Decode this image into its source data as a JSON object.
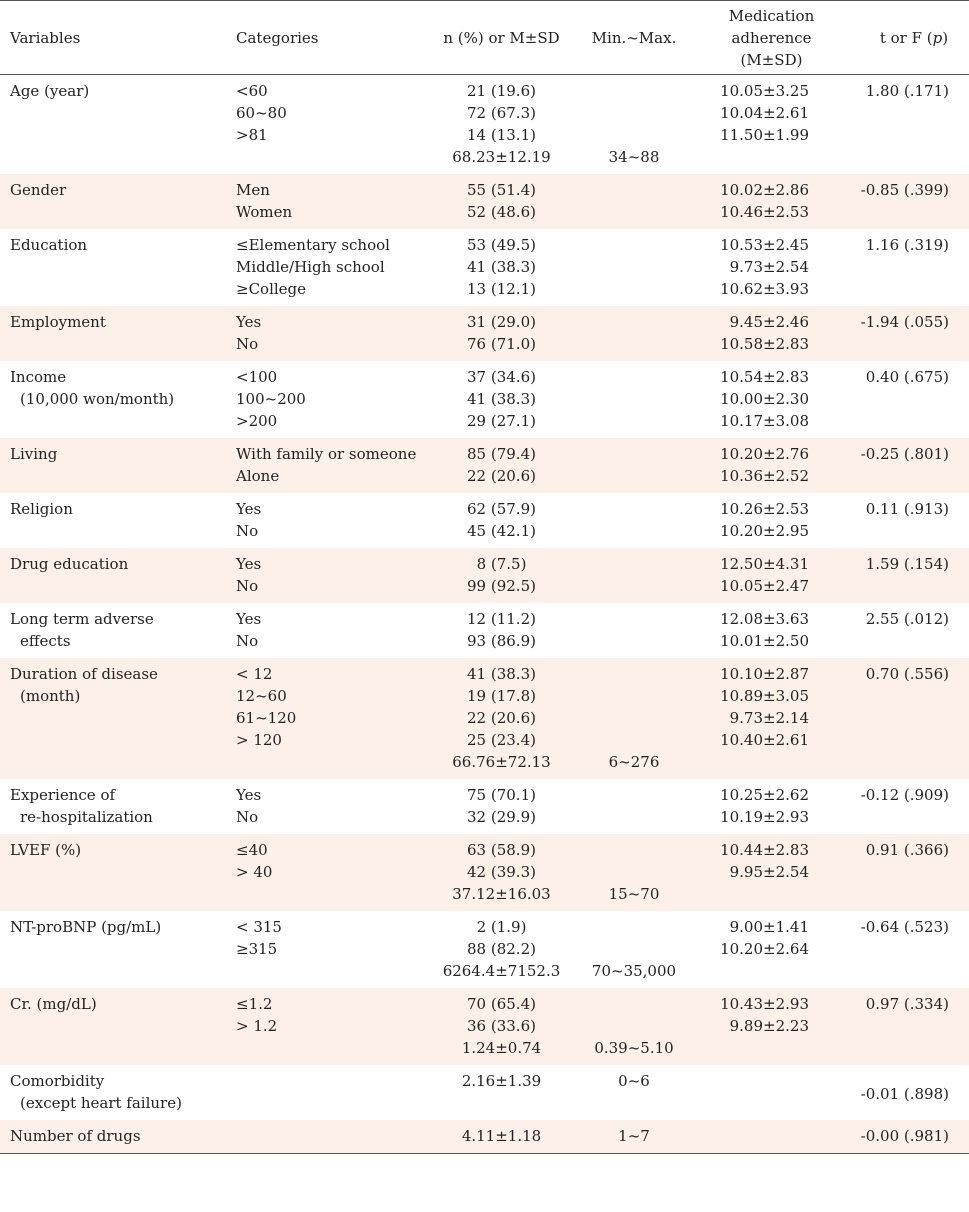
{
  "headers": {
    "variables": "Variables",
    "categories": "Categories",
    "n": "n (%) or M±SD",
    "minmax": "Min.~Max.",
    "adherence_line1": "Medication",
    "adherence_line2": "adherence",
    "adherence_line3": "(M±SD)",
    "test_prefix": "t or F (",
    "test_p": "p",
    "test_suffix": ")"
  },
  "rows": [
    {
      "var1": "Age (year)",
      "cats": [
        "<60",
        "60~80",
        ">81"
      ],
      "n": [
        "21 (19.6)",
        "72 (67.3)",
        "14 (13.1)",
        "68.23±12.19"
      ],
      "minmax": "34~88",
      "adh": [
        "10.05±3.25",
        "10.04±2.61",
        "11.50±1.99"
      ],
      "test": "1.80 (.171)"
    },
    {
      "var1": "Gender",
      "cats": [
        "Men",
        "Women"
      ],
      "n": [
        "55 (51.4)",
        "52 (48.6)"
      ],
      "adh": [
        "10.02±2.86",
        "10.46±2.53"
      ],
      "test": "-0.85 (.399)"
    },
    {
      "var1": "Education",
      "cats": [
        "≤Elementary school",
        "Middle/High school",
        "≥College"
      ],
      "n": [
        "53 (49.5)",
        "41 (38.3)",
        "13 (12.1)"
      ],
      "adh": [
        "10.53±2.45",
        "9.73±2.54",
        "10.62±3.93"
      ],
      "test": "1.16 (.319)"
    },
    {
      "var1": "Employment",
      "cats": [
        "Yes",
        "No"
      ],
      "n": [
        "31 (29.0)",
        "76 (71.0)"
      ],
      "adh": [
        "9.45±2.46",
        "10.58±2.83"
      ],
      "test": "-1.94 (.055)"
    },
    {
      "var1": "Income",
      "var2": "(10,000 won/month)",
      "cats": [
        "<100",
        "100~200",
        ">200"
      ],
      "n": [
        "37 (34.6)",
        "41 (38.3)",
        "29 (27.1)"
      ],
      "adh": [
        "10.54±2.83",
        "10.00±2.30",
        "10.17±3.08"
      ],
      "test": "0.40 (.675)"
    },
    {
      "var1": "Living",
      "cats": [
        "With family or someone",
        "Alone"
      ],
      "n": [
        "85 (79.4)",
        "22 (20.6)"
      ],
      "adh": [
        "10.20±2.76",
        "10.36±2.52"
      ],
      "test": "-0.25 (.801)"
    },
    {
      "var1": "Religion",
      "cats": [
        "Yes",
        "No"
      ],
      "n": [
        "62 (57.9)",
        "45 (42.1)"
      ],
      "adh": [
        "10.26±2.53",
        "10.20±2.95"
      ],
      "test": "0.11 (.913)"
    },
    {
      "var1": "Drug education",
      "cats": [
        "Yes",
        "No"
      ],
      "n": [
        "8 (7.5)",
        "99 (92.5)"
      ],
      "adh": [
        "12.50±4.31",
        "10.05±2.47"
      ],
      "test": "1.59 (.154)"
    },
    {
      "var1": "Long term adverse",
      "var2": "effects",
      "cats": [
        "Yes",
        "No"
      ],
      "n": [
        "12 (11.2)",
        "93 (86.9)"
      ],
      "adh": [
        "12.08±3.63",
        "10.01±2.50"
      ],
      "test": "2.55 (.012)"
    },
    {
      "var1": "Duration of disease",
      "var2": "(month)",
      "cats": [
        "< 12",
        "12~60",
        "61~120",
        "> 120"
      ],
      "n": [
        "41 (38.3)",
        "19 (17.8)",
        "22 (20.6)",
        "25 (23.4)",
        "66.76±72.13"
      ],
      "minmax": "6~276",
      "adh": [
        "10.10±2.87",
        "10.89±3.05",
        "9.73±2.14",
        "10.40±2.61"
      ],
      "test": "0.70 (.556)"
    },
    {
      "var1": "Experience of",
      "var2": "re-hospitalization",
      "cats": [
        "Yes",
        "No"
      ],
      "n": [
        "75 (70.1)",
        "32 (29.9)"
      ],
      "adh": [
        "10.25±2.62",
        "10.19±2.93"
      ],
      "test": "-0.12 (.909)"
    },
    {
      "var1": "LVEF (%)",
      "cats": [
        "≤40",
        "> 40"
      ],
      "n": [
        "63 (58.9)",
        "42 (39.3)",
        "37.12±16.03"
      ],
      "minmax": "15~70",
      "adh": [
        "10.44±2.83",
        "9.95±2.54"
      ],
      "test": "0.91 (.366)"
    },
    {
      "var1": "NT-proBNP (pg/mL)",
      "cats": [
        "< 315",
        "≥315"
      ],
      "n": [
        "2 (1.9)",
        "88 (82.2)",
        "6264.4±7152.3"
      ],
      "minmax": "70~35,000",
      "adh": [
        "9.00±1.41",
        "10.20±2.64"
      ],
      "test": "-0.64 (.523)"
    },
    {
      "var1": "Cr. (mg/dL)",
      "cats": [
        "≤1.2",
        "> 1.2"
      ],
      "n": [
        "70 (65.4)",
        "36 (33.6)",
        "1.24±0.74"
      ],
      "minmax": "0.39~5.10",
      "adh": [
        "10.43±2.93",
        "9.89±2.23"
      ],
      "test": "0.97 (.334)"
    },
    {
      "var1": "Comorbidity",
      "var2": "(except heart failure)",
      "cats": [],
      "n": [
        "2.16±1.39"
      ],
      "minmax": "0~6",
      "minmax_top": true,
      "adh": [],
      "test": "-0.01 (.898)",
      "test_shift": true
    },
    {
      "var1": "Number of drugs",
      "cats": [],
      "n": [
        "4.11±1.18"
      ],
      "minmax": "1~7",
      "minmax_top": true,
      "adh": [],
      "test": "-0.00 (.981)"
    }
  ]
}
